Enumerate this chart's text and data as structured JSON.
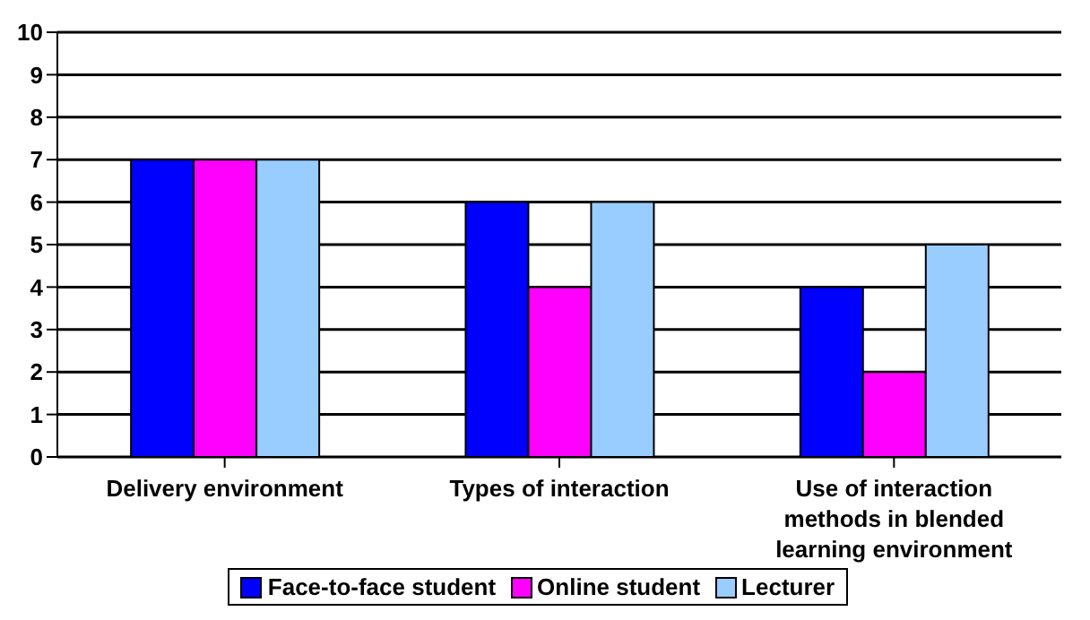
{
  "chart_data": {
    "type": "bar",
    "categories": [
      "Delivery environment",
      "Types of interaction",
      "Use of interaction methods in blended learning environment"
    ],
    "series": [
      {
        "name": "Face-to-face student",
        "color": "#0000ff",
        "values": [
          7,
          6,
          4
        ]
      },
      {
        "name": "Online student",
        "color": "#ff00ff",
        "values": [
          7,
          4,
          2
        ]
      },
      {
        "name": "Lecturer",
        "color": "#99ccff",
        "values": [
          7,
          6,
          5
        ]
      }
    ],
    "ylim": [
      0,
      10
    ],
    "yticks": [
      0,
      1,
      2,
      3,
      4,
      5,
      6,
      7,
      8,
      9,
      10
    ],
    "grid": "y",
    "legend": "bottom"
  }
}
